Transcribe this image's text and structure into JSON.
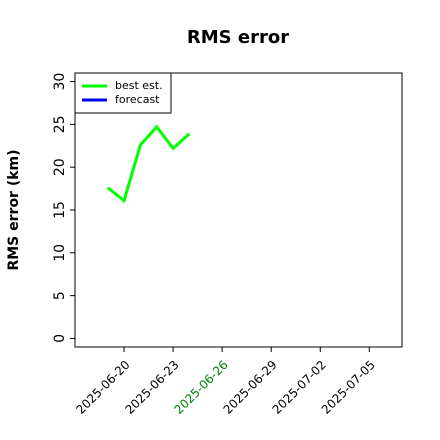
{
  "chart_data": {
    "type": "line",
    "title": "RMS error",
    "ylabel": "RMS error (km)",
    "x": [
      "2025-06-19",
      "2025-06-20",
      "2025-06-21",
      "2025-06-22",
      "2025-06-23",
      "2025-06-24"
    ],
    "series": [
      {
        "name": "best est.",
        "color": "#00ff00",
        "values": [
          17.6,
          16.1,
          22.6,
          24.7,
          22.2,
          23.9
        ]
      },
      {
        "name": "forecast",
        "color": "#0000ff",
        "values": [
          null,
          null,
          null,
          null,
          null,
          null
        ]
      }
    ],
    "xlim": [
      "2025-06-17",
      "2025-07-07"
    ],
    "xticks": [
      "2025-06-20",
      "2025-06-23",
      "2025-06-26",
      "2025-06-29",
      "2025-07-02",
      "2025-07-05"
    ],
    "xtick_colors": [
      "#000000",
      "#000000",
      "#008000",
      "#000000",
      "#000000",
      "#000000"
    ],
    "ylim": [
      -1,
      31
    ],
    "yticks": [
      0,
      5,
      10,
      15,
      20,
      25,
      30
    ],
    "grid": false,
    "legend": "upper left"
  }
}
